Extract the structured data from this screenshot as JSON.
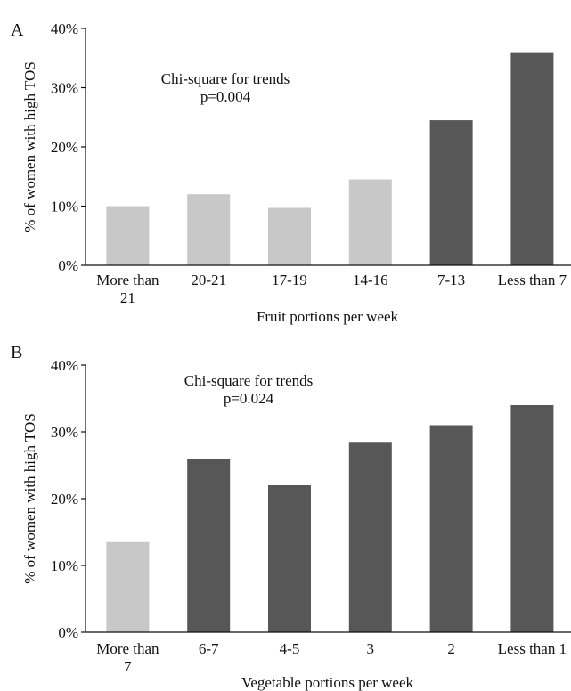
{
  "colors": {
    "light": "#c8c8c8",
    "dark": "#575757",
    "axis": "#111111"
  },
  "chart_data": [
    {
      "panel_label": "A",
      "type": "bar",
      "title": "",
      "categories": [
        "More than 21",
        "20-21",
        "17-19",
        "14-16",
        "7-13",
        "Less than 7"
      ],
      "category_lines": [
        [
          "More than",
          "21"
        ],
        [
          "20-21"
        ],
        [
          "17-19"
        ],
        [
          "14-16"
        ],
        [
          "7-13"
        ],
        [
          "Less than 7"
        ]
      ],
      "values": [
        10,
        12,
        9.7,
        14.5,
        24.5,
        36
      ],
      "bar_shades": [
        "light",
        "light",
        "light",
        "light",
        "dark",
        "dark"
      ],
      "xlabel": "Fruit portions per week",
      "ylabel": "% of women with high TOS",
      "ylim": [
        0,
        40
      ],
      "yticks": [
        0,
        10,
        20,
        30,
        40
      ],
      "ytick_labels": [
        "0%",
        "10%",
        "20%",
        "30%",
        "40%"
      ],
      "annotation": [
        "Chi-square for trends",
        "p=0.004"
      ],
      "grid": false
    },
    {
      "panel_label": "B",
      "type": "bar",
      "title": "",
      "categories": [
        "More than 7",
        "6-7",
        "4-5",
        "3",
        "2",
        "Less than 1"
      ],
      "category_lines": [
        [
          "More than",
          "7"
        ],
        [
          "6-7"
        ],
        [
          "4-5"
        ],
        [
          "3"
        ],
        [
          "2"
        ],
        [
          "Less than 1"
        ]
      ],
      "values": [
        13.5,
        26,
        22,
        28.5,
        31,
        34
      ],
      "bar_shades": [
        "light",
        "dark",
        "dark",
        "dark",
        "dark",
        "dark"
      ],
      "xlabel": "Vegetable portions per week",
      "ylabel": "% of women with high TOS",
      "ylim": [
        0,
        40
      ],
      "yticks": [
        0,
        10,
        20,
        30,
        40
      ],
      "ytick_labels": [
        "0%",
        "10%",
        "20%",
        "30%",
        "40%"
      ],
      "annotation": [
        "Chi-square for trends",
        "p=0.024"
      ],
      "grid": false
    }
  ]
}
